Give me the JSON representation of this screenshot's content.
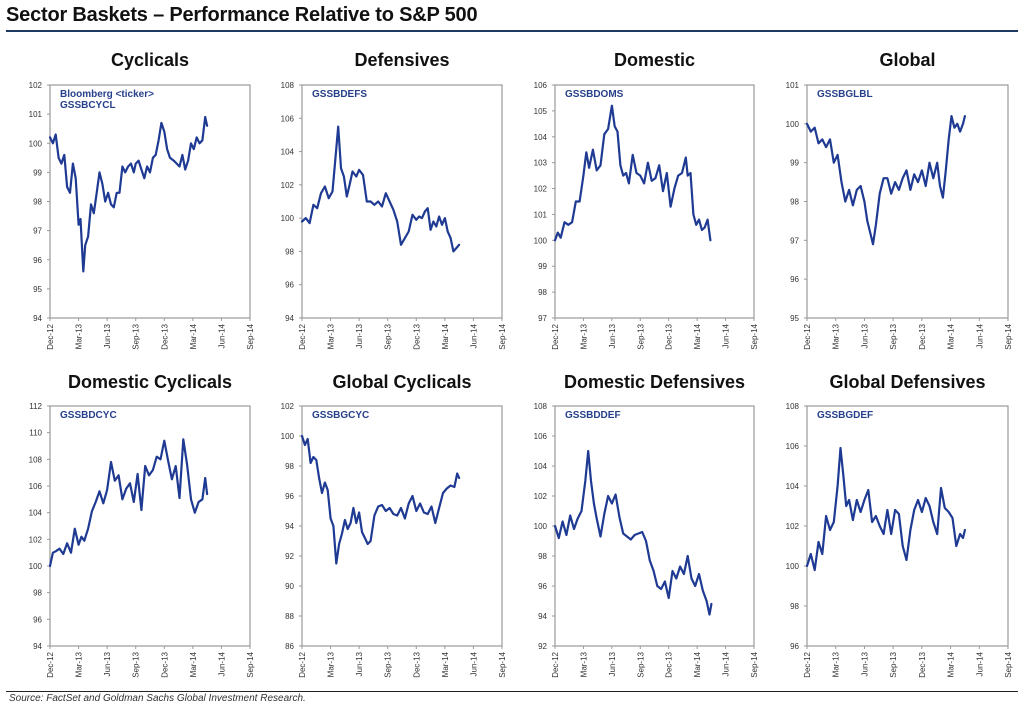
{
  "page": {
    "title": "Sector Baskets – Performance Relative to S&P 500",
    "source": "Source: FactSet and Goldman Sachs Global Investment Research."
  },
  "colors": {
    "line": "#1f3a93",
    "ticker_text": "#27408b",
    "axis": "#999999",
    "title_rule": "#1f3a5f"
  },
  "chart_data": [
    {
      "type": "line",
      "title": "Cyclicals",
      "annotation": [
        "Bloomberg <ticker>",
        "GSSBCYCL"
      ],
      "xlabel": "",
      "ylabel": "",
      "x_ticks": [
        "Dec-12",
        "Mar-13",
        "Jun-13",
        "Sep-13",
        "Dec-13",
        "Mar-14",
        "Jun-14",
        "Sep-14"
      ],
      "ylim": [
        94,
        102
      ],
      "y_ticks": [
        94,
        95,
        96,
        97,
        98,
        99,
        100,
        101,
        102
      ],
      "grid": false,
      "series": [
        {
          "name": "GSSBCYCL",
          "x_months": [
            0,
            0.3,
            0.6,
            0.9,
            1.2,
            1.5,
            1.8,
            2.1,
            2.4,
            2.7,
            3.0,
            3.2,
            3.5,
            3.7,
            4.0,
            4.3,
            4.6,
            4.9,
            5.2,
            5.5,
            5.8,
            6.1,
            6.4,
            6.7,
            7.0,
            7.3,
            7.6,
            7.9,
            8.2,
            8.5,
            8.8,
            9.0,
            9.3,
            9.6,
            9.9,
            10.2,
            10.5,
            10.8,
            11.1,
            11.4,
            11.7,
            12.0,
            12.3,
            12.6,
            13.0,
            13.3,
            13.6,
            13.9,
            14.2,
            14.5,
            14.8,
            15.1,
            15.4,
            15.7,
            16.0,
            16.3,
            16.5
          ],
          "values": [
            100.2,
            100.0,
            100.3,
            99.5,
            99.3,
            99.6,
            98.5,
            98.3,
            99.3,
            98.8,
            97.2,
            97.4,
            95.6,
            96.5,
            96.8,
            97.9,
            97.6,
            98.3,
            99.0,
            98.6,
            98.0,
            98.3,
            97.9,
            97.8,
            98.3,
            98.3,
            99.2,
            99.0,
            99.2,
            99.3,
            99.0,
            99.3,
            99.4,
            99.1,
            98.8,
            99.2,
            99.0,
            99.5,
            99.6,
            100.1,
            100.7,
            100.4,
            99.8,
            99.5,
            99.4,
            99.3,
            99.2,
            99.6,
            99.1,
            99.4,
            100.0,
            99.8,
            100.2,
            100.0,
            100.1,
            100.9,
            100.6
          ]
        }
      ]
    },
    {
      "type": "line",
      "title": "Defensives",
      "annotation": [
        "GSSBDEFS"
      ],
      "x_ticks": [
        "Dec-12",
        "Mar-13",
        "Jun-13",
        "Sep-13",
        "Dec-13",
        "Mar-14",
        "Jun-14",
        "Sep-14"
      ],
      "ylim": [
        94,
        108
      ],
      "y_ticks": [
        94,
        96,
        98,
        100,
        102,
        104,
        106,
        108
      ],
      "grid": false,
      "series": [
        {
          "name": "GSSBDEFS",
          "x_months": [
            0,
            0.4,
            0.8,
            1.2,
            1.6,
            2.0,
            2.4,
            2.8,
            3.2,
            3.5,
            3.8,
            4.1,
            4.4,
            4.7,
            5.0,
            5.3,
            5.7,
            6.0,
            6.4,
            6.8,
            7.2,
            7.6,
            8.0,
            8.4,
            8.8,
            9.2,
            9.6,
            10.0,
            10.4,
            10.8,
            11.2,
            11.6,
            12.0,
            12.3,
            12.6,
            12.9,
            13.2,
            13.5,
            13.8,
            14.1,
            14.4,
            14.7,
            15.0,
            15.3,
            15.6,
            15.9,
            16.2,
            16.5
          ],
          "values": [
            99.8,
            100.0,
            99.7,
            100.8,
            100.6,
            101.5,
            101.9,
            101.2,
            101.6,
            103.5,
            105.5,
            103.0,
            102.5,
            101.3,
            102.0,
            102.8,
            102.5,
            102.9,
            102.6,
            101.0,
            101.0,
            100.8,
            101.0,
            100.7,
            101.5,
            101.0,
            100.5,
            99.8,
            98.4,
            98.8,
            99.2,
            100.2,
            99.9,
            100.1,
            100.0,
            100.4,
            100.6,
            99.3,
            99.8,
            99.5,
            100.1,
            99.6,
            100.0,
            99.2,
            98.8,
            98.0,
            98.2,
            98.4
          ]
        }
      ]
    },
    {
      "type": "line",
      "title": "Domestic",
      "annotation": [
        "GSSBDOMS"
      ],
      "x_ticks": [
        "Dec-12",
        "Mar-13",
        "Jun-13",
        "Sep-13",
        "Dec-13",
        "Mar-14",
        "Jun-14",
        "Sep-14"
      ],
      "ylim": [
        97,
        106
      ],
      "y_ticks": [
        97,
        98,
        99,
        100,
        101,
        102,
        103,
        104,
        105,
        106
      ],
      "grid": false,
      "series": [
        {
          "name": "GSSBDOMS",
          "x_months": [
            0,
            0.3,
            0.6,
            1.0,
            1.4,
            1.8,
            2.2,
            2.6,
            3.0,
            3.3,
            3.6,
            4.0,
            4.4,
            4.8,
            5.2,
            5.6,
            6.0,
            6.3,
            6.6,
            6.9,
            7.2,
            7.5,
            7.8,
            8.2,
            8.6,
            9.0,
            9.4,
            9.8,
            10.2,
            10.6,
            11.0,
            11.4,
            11.8,
            12.2,
            12.6,
            13.0,
            13.4,
            13.8,
            14.0,
            14.3,
            14.6,
            14.9,
            15.2,
            15.5,
            15.8,
            16.1,
            16.4
          ],
          "values": [
            100.0,
            100.3,
            100.1,
            100.7,
            100.6,
            100.7,
            101.5,
            101.5,
            102.5,
            103.4,
            102.8,
            103.5,
            102.7,
            102.9,
            104.1,
            104.3,
            105.2,
            104.4,
            104.2,
            102.9,
            102.5,
            102.6,
            102.2,
            103.3,
            102.6,
            102.5,
            102.2,
            103.0,
            102.3,
            102.4,
            102.9,
            101.9,
            102.6,
            101.3,
            102.0,
            102.5,
            102.6,
            103.2,
            102.5,
            102.6,
            101.0,
            100.6,
            100.8,
            100.4,
            100.5,
            100.8,
            100.0
          ]
        }
      ]
    },
    {
      "type": "line",
      "title": "Global",
      "annotation": [
        "GSSBGLBL"
      ],
      "x_ticks": [
        "Dec-12",
        "Mar-13",
        "Jun-13",
        "Sep-13",
        "Dec-13",
        "Mar-14",
        "Jun-14",
        "Sep-14"
      ],
      "ylim": [
        95,
        101
      ],
      "y_ticks": [
        95,
        96,
        97,
        98,
        99,
        100,
        101
      ],
      "grid": false,
      "series": [
        {
          "name": "GSSBGLBL",
          "x_months": [
            0,
            0.4,
            0.8,
            1.2,
            1.6,
            2.0,
            2.4,
            2.8,
            3.2,
            3.6,
            4.0,
            4.4,
            4.8,
            5.2,
            5.6,
            6.0,
            6.3,
            6.6,
            6.9,
            7.2,
            7.6,
            8.0,
            8.4,
            8.8,
            9.2,
            9.6,
            10.0,
            10.4,
            10.8,
            11.2,
            11.6,
            12.0,
            12.4,
            12.8,
            13.2,
            13.6,
            13.9,
            14.2,
            14.5,
            14.8,
            15.1,
            15.4,
            15.7,
            16.0,
            16.3,
            16.5
          ],
          "values": [
            100.0,
            99.8,
            99.9,
            99.5,
            99.6,
            99.4,
            99.6,
            99.0,
            99.2,
            98.5,
            98.0,
            98.3,
            97.9,
            98.3,
            98.4,
            98.0,
            97.5,
            97.2,
            96.9,
            97.4,
            98.2,
            98.6,
            98.6,
            98.2,
            98.5,
            98.3,
            98.6,
            98.8,
            98.3,
            98.7,
            98.5,
            98.8,
            98.4,
            99.0,
            98.6,
            99.0,
            98.4,
            98.1,
            98.8,
            99.6,
            100.2,
            99.9,
            100.0,
            99.8,
            100.0,
            100.2
          ]
        }
      ]
    },
    {
      "type": "line",
      "title": "Domestic Cyclicals",
      "annotation": [
        "GSSBDCYC"
      ],
      "x_ticks": [
        "Dec-12",
        "Mar-13",
        "Jun-13",
        "Sep-13",
        "Dec-13",
        "Mar-14",
        "Jun-14",
        "Sep-14"
      ],
      "ylim": [
        94,
        112
      ],
      "y_ticks": [
        94,
        96,
        98,
        100,
        102,
        104,
        106,
        108,
        110,
        112
      ],
      "grid": false,
      "series": [
        {
          "name": "GSSBDCYC",
          "x_months": [
            0,
            0.3,
            0.6,
            1.0,
            1.4,
            1.8,
            2.2,
            2.6,
            3.0,
            3.3,
            3.6,
            4.0,
            4.4,
            4.8,
            5.2,
            5.6,
            6.0,
            6.4,
            6.8,
            7.2,
            7.6,
            8.0,
            8.4,
            8.8,
            9.2,
            9.6,
            10.0,
            10.4,
            10.8,
            11.2,
            11.6,
            12.0,
            12.4,
            12.8,
            13.2,
            13.6,
            14.0,
            14.4,
            14.8,
            15.2,
            15.6,
            16.0,
            16.3,
            16.5
          ],
          "values": [
            100.0,
            101.0,
            101.1,
            101.3,
            100.9,
            101.7,
            101.0,
            102.8,
            101.6,
            102.2,
            101.9,
            102.8,
            104.1,
            104.8,
            105.6,
            104.7,
            105.7,
            107.8,
            106.4,
            106.8,
            105.0,
            105.8,
            106.2,
            104.8,
            106.9,
            104.2,
            107.5,
            106.8,
            107.2,
            108.2,
            108.0,
            109.4,
            107.9,
            106.5,
            107.5,
            105.1,
            109.5,
            107.6,
            105.0,
            104.0,
            104.8,
            105.0,
            106.6,
            105.4
          ]
        }
      ]
    },
    {
      "type": "line",
      "title": "Global Cyclicals",
      "annotation": [
        "GSSBGCYC"
      ],
      "x_ticks": [
        "Dec-12",
        "Mar-13",
        "Jun-13",
        "Sep-13",
        "Dec-13",
        "Mar-14",
        "Jun-14",
        "Sep-14"
      ],
      "ylim": [
        86,
        102
      ],
      "y_ticks": [
        86,
        88,
        90,
        92,
        94,
        96,
        98,
        100,
        102
      ],
      "grid": false,
      "series": [
        {
          "name": "GSSBGCYC",
          "x_months": [
            0,
            0.3,
            0.6,
            0.9,
            1.2,
            1.5,
            1.8,
            2.1,
            2.4,
            2.7,
            3.0,
            3.3,
            3.6,
            3.9,
            4.2,
            4.5,
            4.8,
            5.1,
            5.4,
            5.7,
            6.0,
            6.3,
            6.6,
            6.9,
            7.2,
            7.6,
            8.0,
            8.4,
            8.8,
            9.2,
            9.6,
            10.0,
            10.4,
            10.8,
            11.2,
            11.6,
            12.0,
            12.4,
            12.8,
            13.2,
            13.6,
            14.0,
            14.4,
            14.8,
            15.2,
            15.6,
            16.0,
            16.3,
            16.5
          ],
          "values": [
            100.0,
            99.4,
            99.8,
            98.2,
            98.6,
            98.4,
            97.2,
            96.2,
            96.9,
            96.4,
            94.5,
            94.0,
            91.5,
            92.8,
            93.5,
            94.4,
            93.8,
            94.2,
            95.2,
            94.2,
            94.9,
            93.6,
            93.2,
            92.8,
            93.0,
            94.7,
            95.3,
            95.4,
            95.0,
            95.2,
            94.8,
            94.7,
            95.2,
            94.5,
            95.5,
            96.0,
            95.0,
            95.5,
            94.9,
            94.8,
            95.3,
            94.2,
            95.2,
            96.2,
            96.5,
            96.7,
            96.6,
            97.5,
            97.2
          ]
        }
      ]
    },
    {
      "type": "line",
      "title": "Domestic Defensives",
      "annotation": [
        "GSSBDDEF"
      ],
      "x_ticks": [
        "Dec-12",
        "Mar-13",
        "Jun-13",
        "Sep-13",
        "Dec-13",
        "Mar-14",
        "Jun-14",
        "Sep-14"
      ],
      "ylim": [
        92,
        108
      ],
      "y_ticks": [
        92,
        94,
        96,
        98,
        100,
        102,
        104,
        106,
        108
      ],
      "grid": false,
      "series": [
        {
          "name": "GSSBDDEF",
          "x_months": [
            0,
            0.4,
            0.8,
            1.2,
            1.6,
            2.0,
            2.4,
            2.8,
            3.2,
            3.5,
            3.8,
            4.1,
            4.4,
            4.8,
            5.2,
            5.6,
            6.0,
            6.4,
            6.8,
            7.2,
            7.6,
            8.0,
            8.4,
            8.8,
            9.2,
            9.6,
            10.0,
            10.4,
            10.8,
            11.2,
            11.6,
            12.0,
            12.4,
            12.8,
            13.2,
            13.6,
            14.0,
            14.4,
            14.8,
            15.2,
            15.6,
            16.0,
            16.3,
            16.5
          ],
          "values": [
            100.0,
            99.2,
            100.3,
            99.4,
            100.7,
            99.8,
            100.5,
            101.0,
            103.0,
            105.0,
            103.0,
            101.5,
            100.5,
            99.3,
            100.8,
            102.0,
            101.5,
            102.1,
            100.6,
            99.5,
            99.3,
            99.1,
            99.4,
            99.5,
            99.6,
            99.0,
            97.7,
            97.0,
            96.0,
            95.8,
            96.3,
            95.2,
            97.0,
            96.5,
            97.3,
            96.8,
            98.0,
            96.5,
            96.0,
            96.8,
            95.7,
            95.0,
            94.1,
            94.8
          ]
        }
      ]
    },
    {
      "type": "line",
      "title": "Global Defensives",
      "annotation": [
        "GSSBGDEF"
      ],
      "x_ticks": [
        "Dec-12",
        "Mar-13",
        "Jun-13",
        "Sep-13",
        "Dec-13",
        "Mar-14",
        "Jun-14",
        "Sep-14"
      ],
      "ylim": [
        96,
        108
      ],
      "y_ticks": [
        96,
        98,
        100,
        102,
        104,
        106,
        108
      ],
      "grid": false,
      "series": [
        {
          "name": "GSSBGDEF",
          "x_months": [
            0,
            0.4,
            0.8,
            1.2,
            1.6,
            2.0,
            2.4,
            2.8,
            3.2,
            3.5,
            3.8,
            4.1,
            4.4,
            4.8,
            5.2,
            5.6,
            6.0,
            6.4,
            6.8,
            7.2,
            7.6,
            8.0,
            8.4,
            8.8,
            9.2,
            9.6,
            10.0,
            10.4,
            10.8,
            11.2,
            11.6,
            12.0,
            12.4,
            12.8,
            13.2,
            13.6,
            14.0,
            14.4,
            14.8,
            15.2,
            15.6,
            16.0,
            16.3,
            16.5
          ],
          "values": [
            100.0,
            100.6,
            99.8,
            101.2,
            100.6,
            102.5,
            101.8,
            102.2,
            104.0,
            105.9,
            104.5,
            103.0,
            103.3,
            102.3,
            103.3,
            102.7,
            103.3,
            103.8,
            102.2,
            102.5,
            102.0,
            101.6,
            102.8,
            101.6,
            102.8,
            102.6,
            101.0,
            100.3,
            101.8,
            102.8,
            103.3,
            102.7,
            103.4,
            103.0,
            102.2,
            101.6,
            103.9,
            102.9,
            102.7,
            102.4,
            101.0,
            101.6,
            101.4,
            101.8
          ]
        }
      ]
    }
  ]
}
